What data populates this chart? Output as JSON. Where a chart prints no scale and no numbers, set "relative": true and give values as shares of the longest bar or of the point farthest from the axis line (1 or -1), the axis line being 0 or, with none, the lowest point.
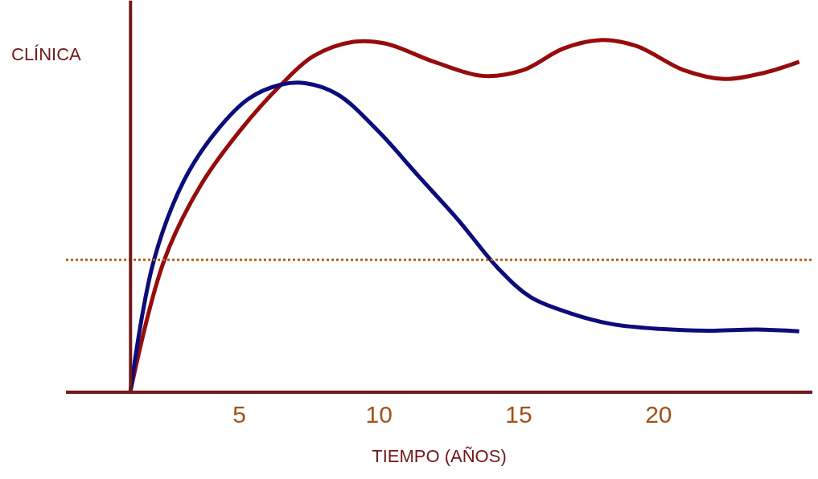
{
  "chart_data": {
    "type": "line",
    "relative": true,
    "xlabel": "TIEMPO (AÑOS)",
    "ylabel": "CLÍNICA",
    "xlim": [
      -1.2,
      25.5
    ],
    "xticks": [
      5,
      10,
      15,
      20
    ],
    "marker": "none",
    "line_style": "solid",
    "series": [
      {
        "color": "#960c0c",
        "x": [
          1.11,
          2.32,
          3.62,
          5.06,
          6.5,
          7.65,
          9.09,
          10.24,
          11.97,
          13.7,
          15.14,
          16.59,
          17.88,
          19.18,
          20.91,
          22.35,
          23.79,
          25.03
        ],
        "values": [
          0,
          0.373,
          0.586,
          0.745,
          0.873,
          0.954,
          0.995,
          0.99,
          0.938,
          0.898,
          0.914,
          0.976,
          1.0,
          0.984,
          0.914,
          0.889,
          0.907,
          0.938
        ]
      },
      {
        "color": "#0c0c7a",
        "x": [
          1.11,
          1.95,
          3.04,
          4.19,
          5.34,
          6.5,
          7.36,
          8.52,
          9.96,
          11.4,
          12.84,
          14.28,
          15.43,
          16.87,
          18.31,
          20.04,
          21.77,
          23.5,
          25.03
        ],
        "values": [
          0,
          0.373,
          0.602,
          0.741,
          0.833,
          0.873,
          0.877,
          0.845,
          0.741,
          0.613,
          0.486,
          0.347,
          0.266,
          0.22,
          0.19,
          0.176,
          0.171,
          0.174,
          0.169
        ]
      }
    ],
    "ref_lines": [
      {
        "axis": "y",
        "value": 0.373,
        "color": "#b0601a",
        "line_style": "dotted"
      },
      {
        "axis": "x",
        "value": 1.11,
        "color": "#701818",
        "line_style": "solid"
      }
    ]
  }
}
